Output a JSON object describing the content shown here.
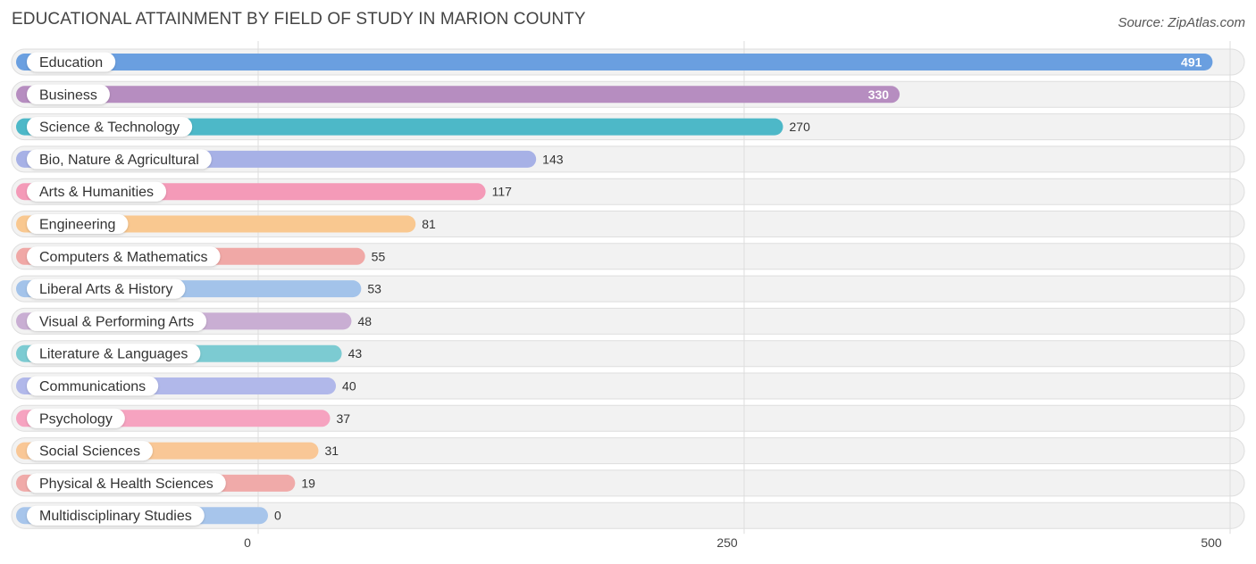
{
  "header": {
    "title": "EDUCATIONAL ATTAINMENT BY FIELD OF STUDY IN MARION COUNTY",
    "source": "Source: ZipAtlas.com"
  },
  "chart_data": {
    "type": "bar",
    "orientation": "horizontal",
    "title": "EDUCATIONAL ATTAINMENT BY FIELD OF STUDY IN MARION COUNTY",
    "xlabel": "",
    "ylabel": "",
    "xlim": [
      0,
      500
    ],
    "ticks": [
      0,
      250,
      500
    ],
    "grid": true,
    "categories": [
      "Education",
      "Business",
      "Science & Technology",
      "Bio, Nature & Agricultural",
      "Arts & Humanities",
      "Engineering",
      "Computers & Mathematics",
      "Liberal Arts & History",
      "Visual & Performing Arts",
      "Literature & Languages",
      "Communications",
      "Psychology",
      "Social Sciences",
      "Physical & Health Sciences",
      "Multidisciplinary Studies"
    ],
    "values": [
      491,
      330,
      270,
      143,
      117,
      81,
      55,
      53,
      48,
      43,
      40,
      37,
      31,
      19,
      0
    ],
    "colors": [
      "#6a9fe0",
      "#b68dc0",
      "#4db8c8",
      "#a7b1e6",
      "#f49ab8",
      "#f9c890",
      "#f0a8a6",
      "#a3c3ea",
      "#c9aed3",
      "#7ccbd2",
      "#b1b8ea",
      "#f6a3c0",
      "#f9c796",
      "#f0aaa9",
      "#a7c5eb"
    ]
  }
}
